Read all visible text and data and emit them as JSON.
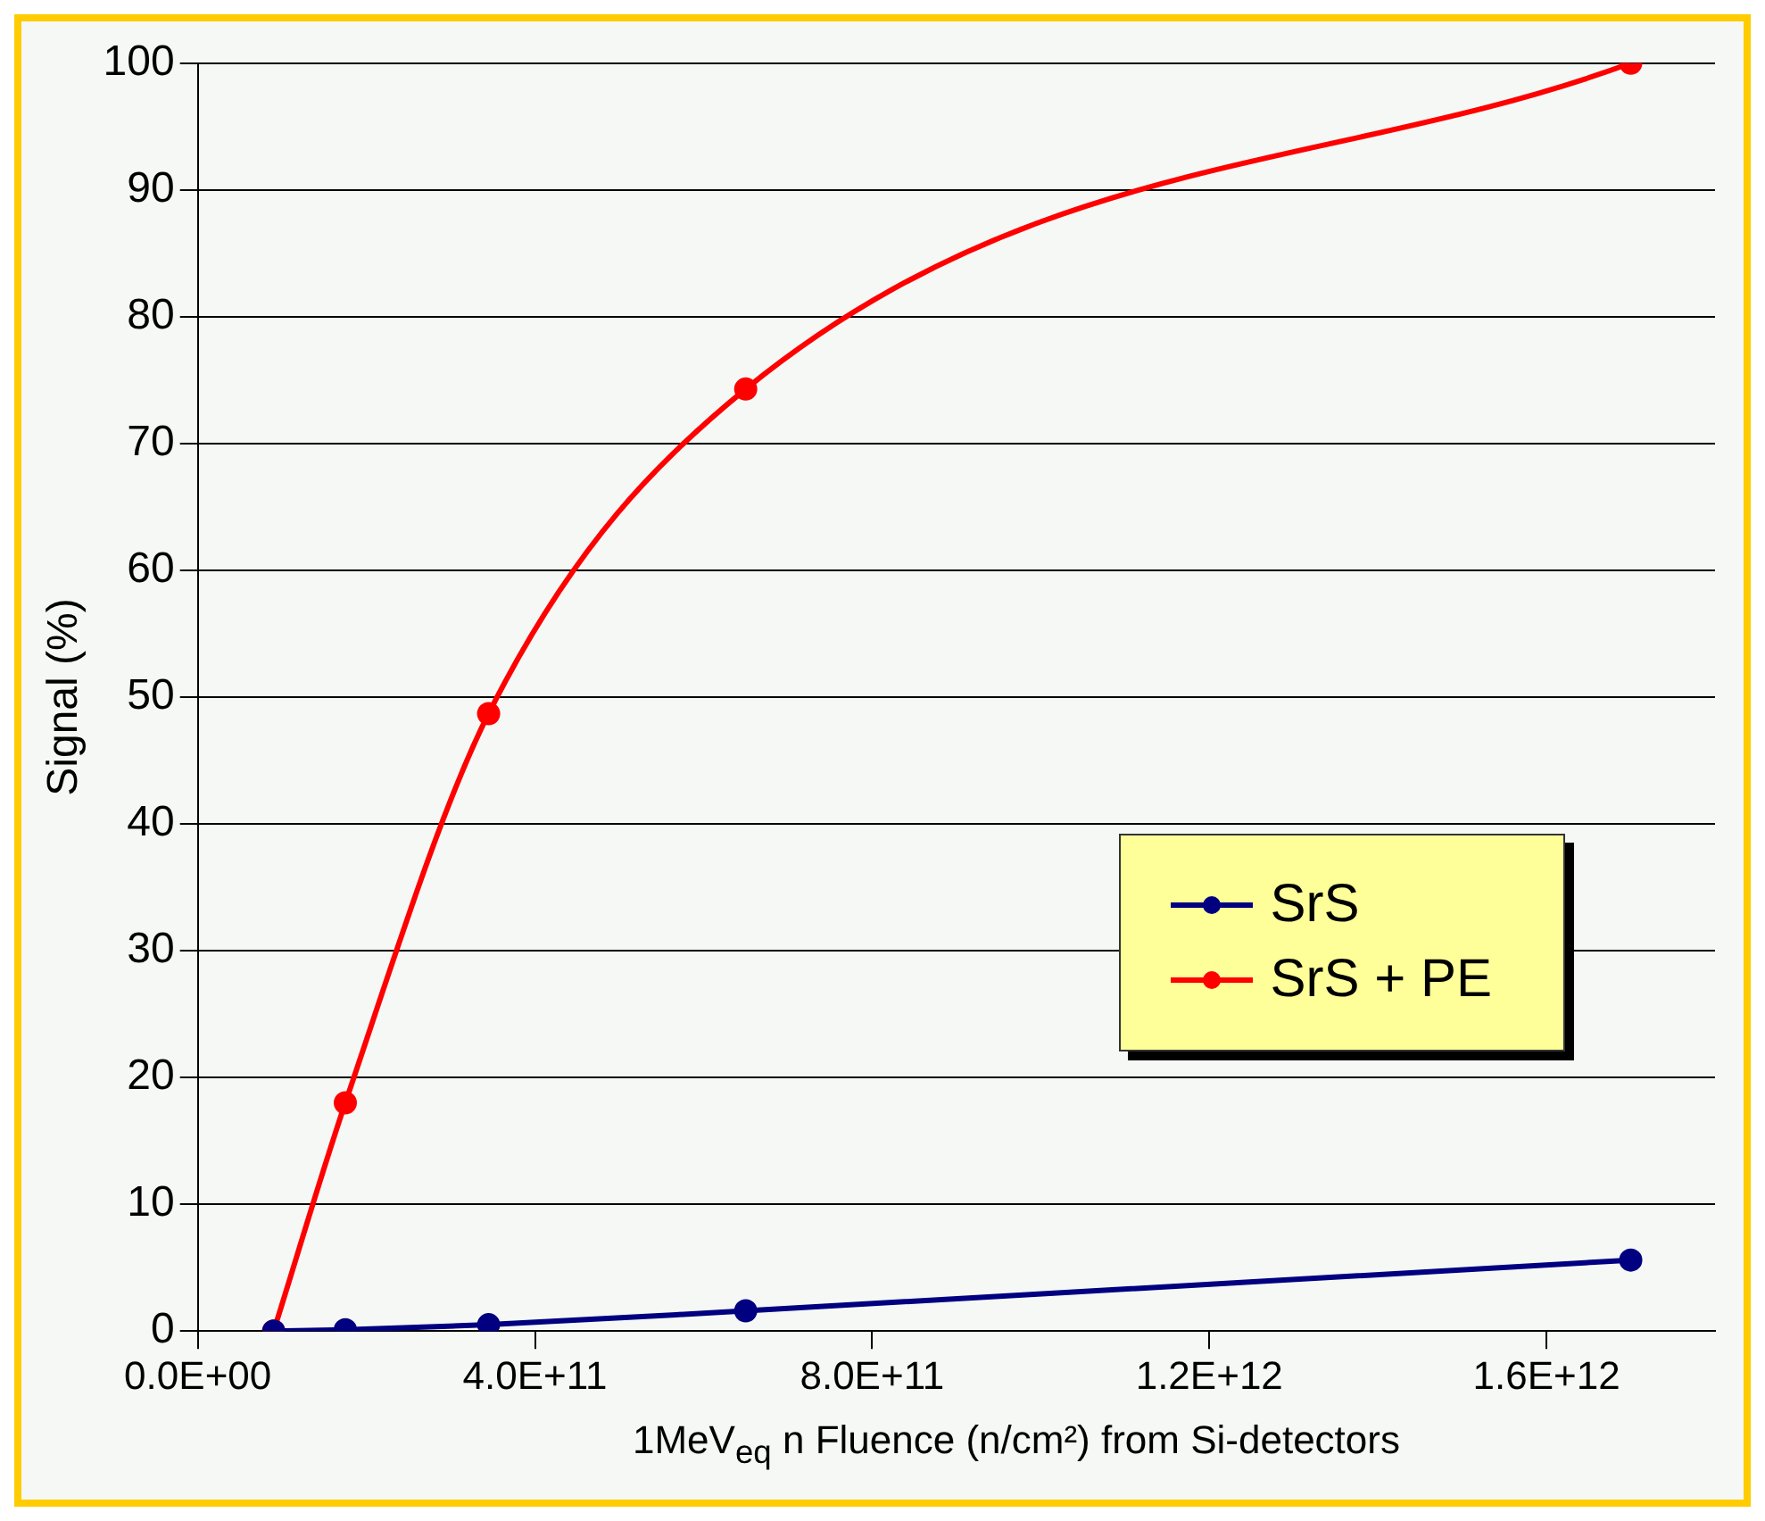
{
  "chart_data": {
    "type": "line",
    "ylabel": "Signal (%)",
    "xlabel": "1MeV$_{eq}$ n Fluence (n/cm²) from Si-detectors",
    "xlim": [
      0,
      1800000000000
    ],
    "xticks": [
      {
        "value": 0,
        "label": "0.0E+00"
      },
      {
        "value": 400000000000,
        "label": "4.0E+11"
      },
      {
        "value": 800000000000,
        "label": "8.0E+11"
      },
      {
        "value": 1200000000000,
        "label": "1.2E+12"
      },
      {
        "value": 1600000000000,
        "label": "1.6E+12"
      }
    ],
    "ylim": [
      0,
      100
    ],
    "yticks": [
      0,
      10,
      20,
      30,
      40,
      50,
      60,
      70,
      80,
      90,
      100
    ],
    "grid": "y",
    "legend": "right",
    "marker": "circle",
    "line_style": "solid",
    "series": [
      {
        "name": "SrS",
        "color": "#000080",
        "x": [
          90000000000,
          175000000000,
          345000000000,
          650000000000,
          1700000000000
        ],
        "values": [
          0,
          0.1,
          0.5,
          1.6,
          5.6
        ]
      },
      {
        "name": "SrS + PE",
        "color": "#ff0000",
        "x": [
          90000000000,
          175000000000,
          345000000000,
          650000000000,
          1700000000000
        ],
        "values": [
          0,
          18,
          48.7,
          74.3,
          100
        ]
      }
    ]
  }
}
